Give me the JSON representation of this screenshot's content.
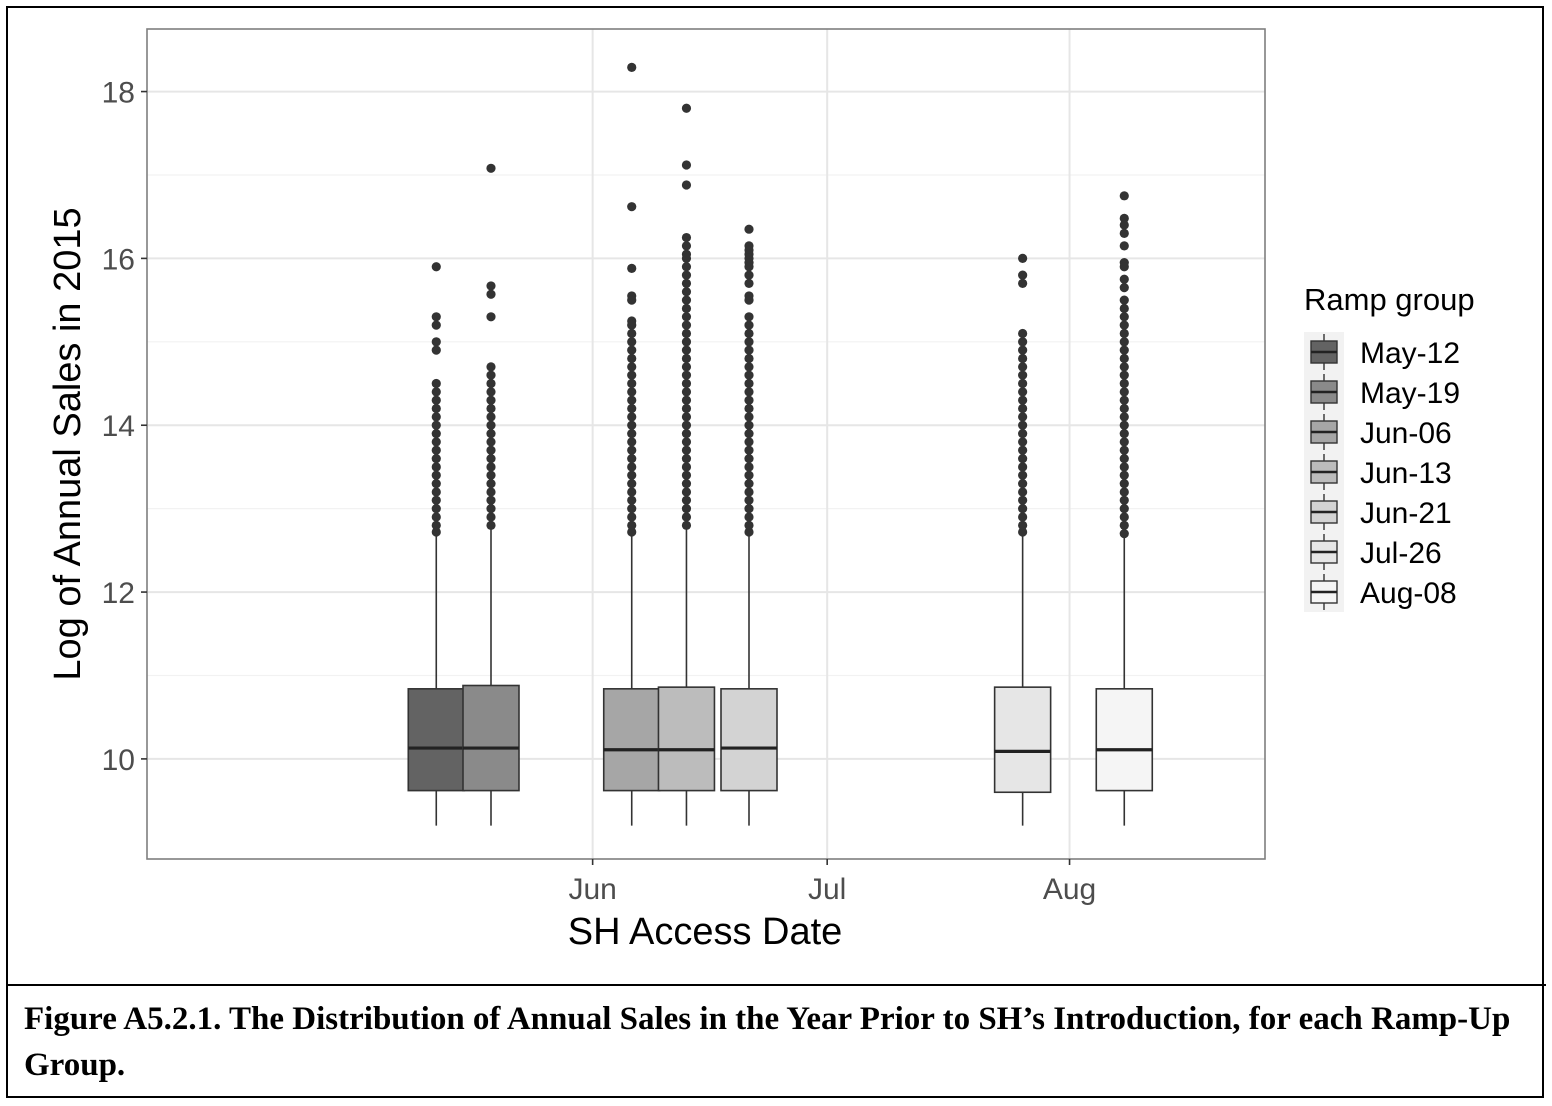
{
  "caption": "Figure A5.2.1. The Distribution of Annual Sales in the Year Prior to SH’s Introduction, for each Ramp-Up Group.",
  "chart_data": {
    "type": "box",
    "xlabel": "SH Access Date",
    "ylabel": "Log of Annual Sales in 2015",
    "ylim": [
      8.8,
      18.75
    ],
    "yticks": [
      10,
      12,
      14,
      16,
      18
    ],
    "xlim": [
      "2016-04-05",
      "2016-08-26"
    ],
    "xticks": [
      {
        "date": "2016-06-01",
        "label": "Jun"
      },
      {
        "date": "2016-07-01",
        "label": "Jul"
      },
      {
        "date": "2016-08-01",
        "label": "Aug"
      }
    ],
    "grid": true,
    "legend": {
      "title": "Ramp group",
      "placement": "right"
    },
    "series": [
      {
        "name": "May-12",
        "date": "2016-05-12",
        "fill": "#636363",
        "whisker_low": 9.2,
        "q1": 9.62,
        "median": 10.13,
        "q3": 10.84,
        "whisker_high": 12.7,
        "outliers": [
          15.9,
          15.3,
          15.2,
          15.0,
          14.9,
          14.5,
          12.72,
          12.8,
          12.9,
          13.0,
          13.1,
          13.2,
          13.3,
          13.4,
          13.5,
          13.6,
          13.7,
          13.8,
          13.9,
          14.0,
          14.1,
          14.2,
          14.3,
          14.4
        ]
      },
      {
        "name": "May-19",
        "date": "2016-05-19",
        "fill": "#8a8a8a",
        "whisker_low": 9.2,
        "q1": 9.62,
        "median": 10.13,
        "q3": 10.88,
        "whisker_high": 12.75,
        "outliers": [
          17.08,
          15.67,
          15.57,
          15.3,
          12.8,
          12.9,
          13.0,
          13.1,
          13.2,
          13.3,
          13.4,
          13.5,
          13.6,
          13.7,
          13.8,
          13.9,
          14.0,
          14.1,
          14.2,
          14.3,
          14.4,
          14.5,
          14.6,
          14.7
        ]
      },
      {
        "name": "Jun-06",
        "date": "2016-06-06",
        "fill": "#a6a6a6",
        "whisker_low": 9.2,
        "q1": 9.62,
        "median": 10.11,
        "q3": 10.84,
        "whisker_high": 12.7,
        "outliers": [
          18.29,
          16.62,
          15.88,
          15.55,
          15.5,
          15.25,
          15.2,
          15.1,
          15.0,
          12.72,
          12.8,
          12.9,
          13.0,
          13.1,
          13.2,
          13.3,
          13.4,
          13.5,
          13.6,
          13.7,
          13.8,
          13.9,
          14.0,
          14.1,
          14.2,
          14.3,
          14.4,
          14.5,
          14.6,
          14.7,
          14.8,
          14.9
        ]
      },
      {
        "name": "Jun-13",
        "date": "2016-06-13",
        "fill": "#bcbcbc",
        "whisker_low": 9.2,
        "q1": 9.62,
        "median": 10.11,
        "q3": 10.86,
        "whisker_high": 12.75,
        "outliers": [
          17.8,
          17.12,
          16.88,
          16.25,
          16.15,
          16.05,
          16.0,
          15.9,
          15.8,
          12.8,
          12.9,
          13.0,
          13.1,
          13.2,
          13.3,
          13.4,
          13.5,
          13.6,
          13.7,
          13.8,
          13.9,
          14.0,
          14.1,
          14.2,
          14.3,
          14.4,
          14.5,
          14.6,
          14.7,
          14.8,
          14.9,
          15.0,
          15.1,
          15.2,
          15.3,
          15.4,
          15.5,
          15.6,
          15.7
        ]
      },
      {
        "name": "Jun-21",
        "date": "2016-06-21",
        "fill": "#d3d3d3",
        "whisker_low": 9.2,
        "q1": 9.62,
        "median": 10.13,
        "q3": 10.84,
        "whisker_high": 12.7,
        "outliers": [
          16.35,
          16.15,
          16.1,
          16.05,
          16.0,
          15.95,
          15.9,
          15.8,
          15.7,
          15.55,
          15.5,
          12.72,
          12.8,
          12.9,
          13.0,
          13.1,
          13.2,
          13.3,
          13.4,
          13.5,
          13.6,
          13.7,
          13.8,
          13.9,
          14.0,
          14.1,
          14.2,
          14.3,
          14.4,
          14.5,
          14.6,
          14.7,
          14.8,
          14.9,
          15.0,
          15.1,
          15.2,
          15.3
        ]
      },
      {
        "name": "Jul-26",
        "date": "2016-07-26",
        "fill": "#e6e6e6",
        "whisker_low": 9.2,
        "q1": 9.6,
        "median": 10.09,
        "q3": 10.86,
        "whisker_high": 12.7,
        "outliers": [
          16.0,
          15.8,
          15.7,
          12.72,
          12.8,
          12.9,
          13.0,
          13.1,
          13.2,
          13.3,
          13.4,
          13.5,
          13.6,
          13.7,
          13.8,
          13.9,
          14.0,
          14.1,
          14.2,
          14.3,
          14.4,
          14.5,
          14.6,
          14.7,
          14.8,
          14.9,
          15.0,
          15.1
        ]
      },
      {
        "name": "Aug-08",
        "date": "2016-08-08",
        "fill": "#f5f5f5",
        "whisker_low": 9.2,
        "q1": 9.62,
        "median": 10.11,
        "q3": 10.84,
        "whisker_high": 12.65,
        "outliers": [
          16.75,
          16.48,
          16.4,
          16.3,
          16.15,
          15.95,
          15.9,
          15.75,
          15.65,
          15.5,
          15.4,
          12.7,
          12.8,
          12.9,
          13.0,
          13.1,
          13.2,
          13.3,
          13.4,
          13.5,
          13.6,
          13.7,
          13.8,
          13.9,
          14.0,
          14.1,
          14.2,
          14.3,
          14.4,
          14.5,
          14.6,
          14.7,
          14.8,
          14.9,
          15.0,
          15.1,
          15.2,
          15.3
        ]
      }
    ]
  }
}
